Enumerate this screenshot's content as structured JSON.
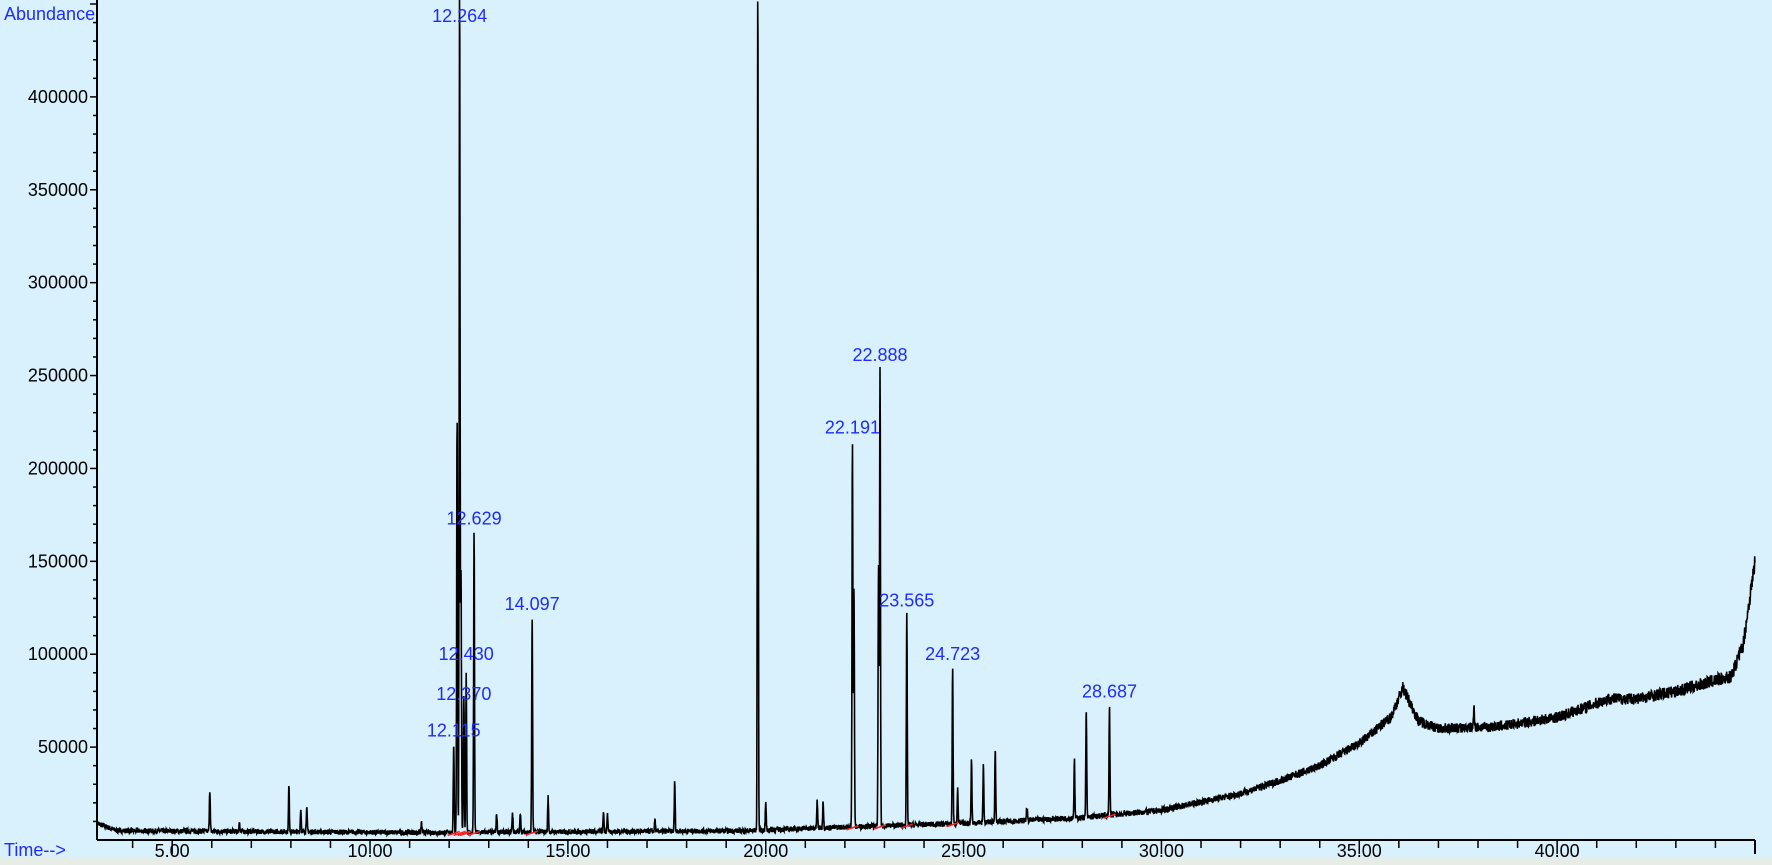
{
  "chart_data": {
    "type": "line",
    "title": "",
    "xlabel": "Time-->",
    "ylabel": "Abundance",
    "xlim": [
      3.1,
      45.0
    ],
    "ylim": [
      0,
      450000
    ],
    "x_ticks": [
      5,
      10,
      15,
      20,
      25,
      30,
      35,
      40
    ],
    "x_tick_labels": [
      "5.00",
      "10.00",
      "15.00",
      "20.00",
      "25.00",
      "30.00",
      "35.00",
      "40.00"
    ],
    "x_minor_step": 1,
    "y_ticks": [
      50000,
      100000,
      150000,
      200000,
      250000,
      300000,
      350000,
      400000
    ],
    "y_tick_labels": [
      "50000",
      "100000",
      "150000",
      "200000",
      "250000",
      "300000",
      "350000",
      "400000"
    ],
    "y_minor_step": 10000,
    "grid": false,
    "colors": {
      "background": "#d9f0fd",
      "trace": "#000000",
      "labels": "#1f2cff",
      "axis_text": "#000000",
      "integration_marks": "#ff2020"
    },
    "baseline": [
      [
        3.1,
        9000
      ],
      [
        3.6,
        5000
      ],
      [
        11.5,
        4000
      ],
      [
        19.5,
        5000
      ],
      [
        22,
        7000
      ],
      [
        25,
        9000
      ],
      [
        28,
        12000
      ],
      [
        30,
        16000
      ],
      [
        32,
        25000
      ],
      [
        33,
        32000
      ],
      [
        34,
        40000
      ],
      [
        35,
        52000
      ],
      [
        35.8,
        66000
      ],
      [
        36.1,
        82000
      ],
      [
        36.5,
        64000
      ],
      [
        37,
        60000
      ],
      [
        38.5,
        61000
      ],
      [
        40,
        66000
      ],
      [
        41.3,
        76000
      ],
      [
        42,
        76000
      ],
      [
        43,
        80000
      ],
      [
        44,
        86000
      ],
      [
        44.4,
        88000
      ],
      [
        44.7,
        105000
      ],
      [
        45.0,
        150000
      ]
    ],
    "peaks": [
      {
        "time": 5.95,
        "abundance": 27000
      },
      {
        "time": 6.7,
        "abundance": 10000
      },
      {
        "time": 7.95,
        "abundance": 29000
      },
      {
        "time": 8.25,
        "abundance": 17000
      },
      {
        "time": 8.4,
        "abundance": 18000
      },
      {
        "time": 11.3,
        "abundance": 9000
      },
      {
        "time": 12.115,
        "abundance": 52000,
        "label": "12.115"
      },
      {
        "time": 12.2,
        "abundance": 228000
      },
      {
        "time": 12.264,
        "abundance": 460000,
        "label": "12.264"
      },
      {
        "time": 12.3,
        "abundance": 143000
      },
      {
        "time": 12.37,
        "abundance": 78000,
        "label": "12.370"
      },
      {
        "time": 12.43,
        "abundance": 90000,
        "label": "12.430"
      },
      {
        "time": 12.629,
        "abundance": 166000,
        "label": "12.629"
      },
      {
        "time": 13.2,
        "abundance": 14000
      },
      {
        "time": 13.6,
        "abundance": 15000
      },
      {
        "time": 13.8,
        "abundance": 15000
      },
      {
        "time": 14.097,
        "abundance": 120000,
        "label": "14.097"
      },
      {
        "time": 14.5,
        "abundance": 23000
      },
      {
        "time": 15.9,
        "abundance": 16000
      },
      {
        "time": 16.0,
        "abundance": 14000
      },
      {
        "time": 17.2,
        "abundance": 11000
      },
      {
        "time": 17.7,
        "abundance": 31000
      },
      {
        "time": 19.8,
        "abundance": 460000
      },
      {
        "time": 20.0,
        "abundance": 20000
      },
      {
        "time": 21.3,
        "abundance": 21000
      },
      {
        "time": 21.45,
        "abundance": 21000
      },
      {
        "time": 22.191,
        "abundance": 215000,
        "label": "22.191"
      },
      {
        "time": 22.23,
        "abundance": 136000
      },
      {
        "time": 22.85,
        "abundance": 148000
      },
      {
        "time": 22.888,
        "abundance": 254000,
        "label": "22.888"
      },
      {
        "time": 23.565,
        "abundance": 122000,
        "label": "23.565"
      },
      {
        "time": 24.723,
        "abundance": 93000,
        "label": "24.723"
      },
      {
        "time": 24.85,
        "abundance": 27000
      },
      {
        "time": 25.2,
        "abundance": 43000
      },
      {
        "time": 25.5,
        "abundance": 40000
      },
      {
        "time": 25.8,
        "abundance": 50000
      },
      {
        "time": 26.6,
        "abundance": 18000
      },
      {
        "time": 27.8,
        "abundance": 43000
      },
      {
        "time": 28.1,
        "abundance": 70000
      },
      {
        "time": 28.687,
        "abundance": 73000,
        "label": "28.687"
      },
      {
        "time": 37.9,
        "abundance": 72000
      }
    ]
  }
}
